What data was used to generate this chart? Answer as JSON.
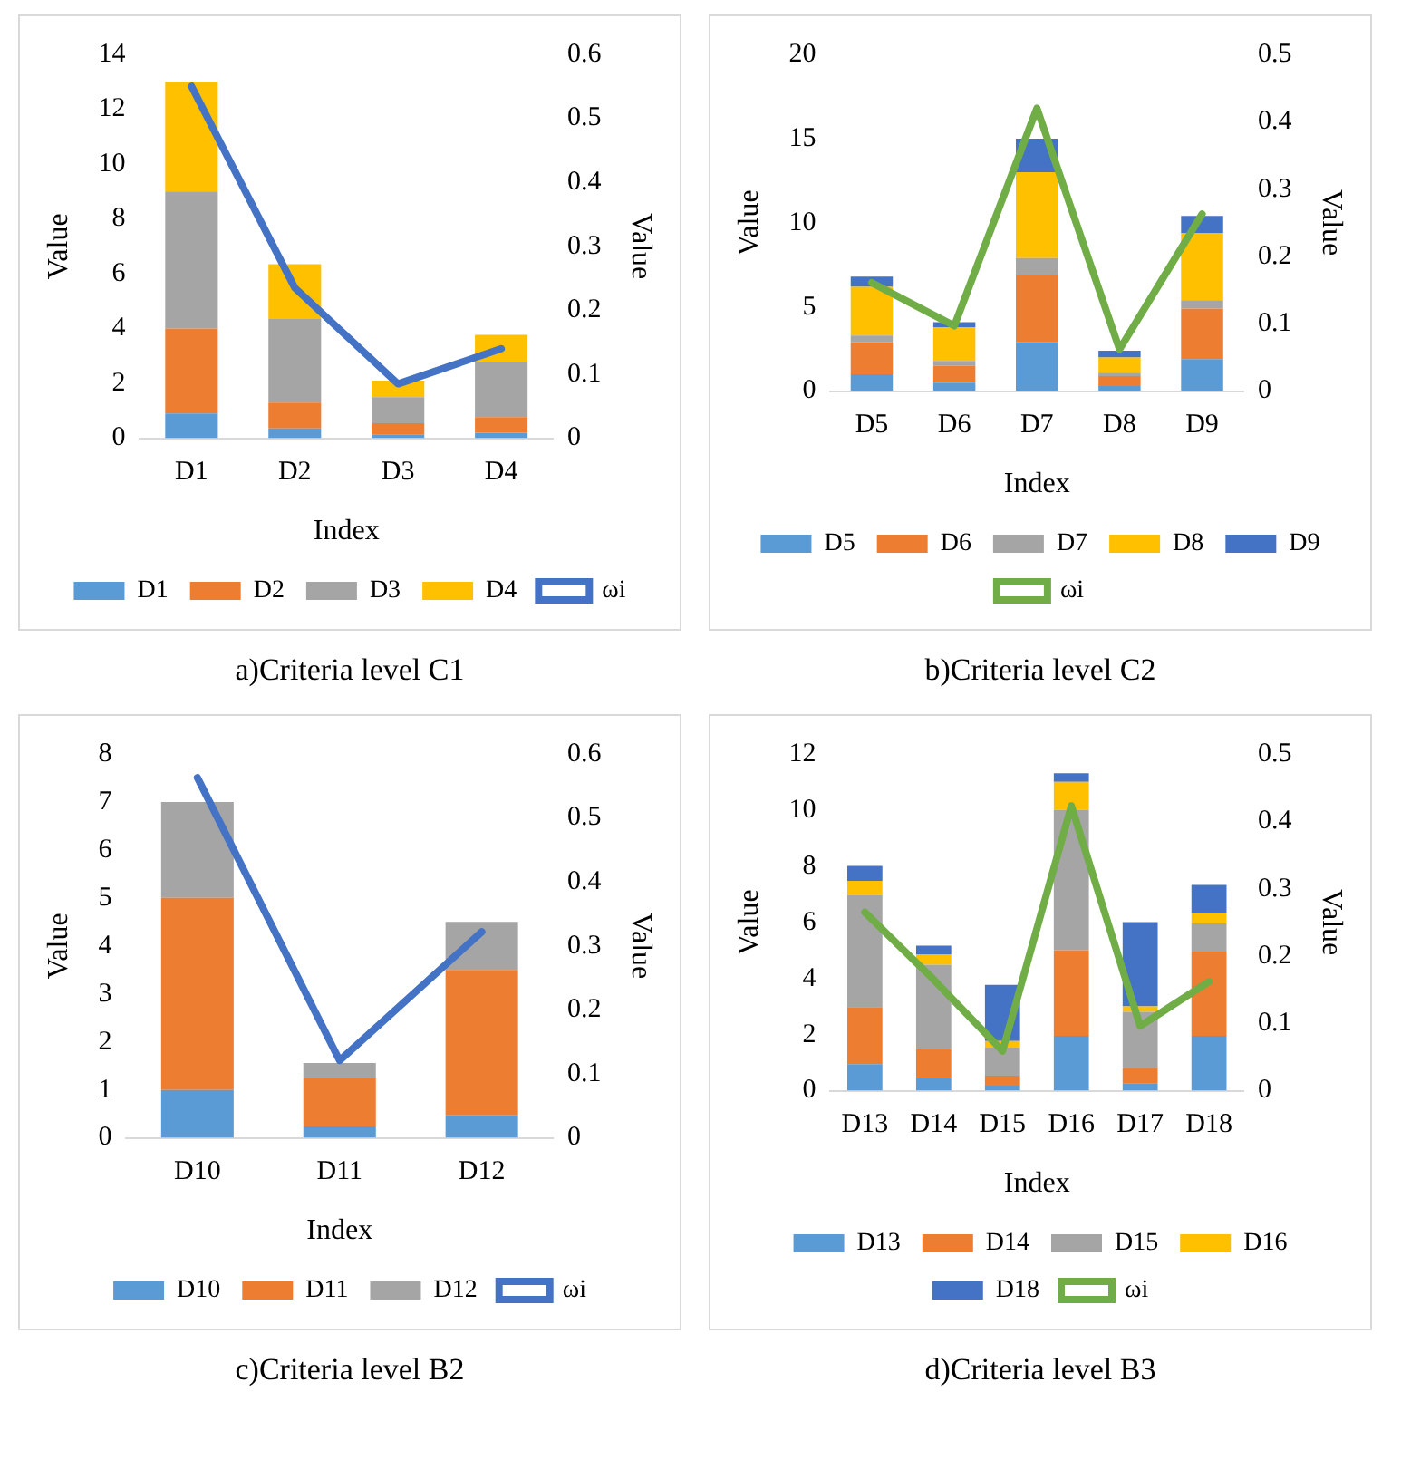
{
  "chart_data": [
    {
      "type": "bar",
      "title": "a)Criteria level C1",
      "xlabel": "Index",
      "ylabel": "Value",
      "y2label": "Value",
      "categories": [
        "D1",
        "D2",
        "D3",
        "D4"
      ],
      "stacked": true,
      "grid": false,
      "legend": "bottom",
      "marker": "none",
      "ylim": [
        0,
        14
      ],
      "yticks": [
        0,
        2,
        4,
        6,
        8,
        10,
        12,
        14
      ],
      "y2lim": [
        0,
        0.6
      ],
      "y2ticks": [
        0,
        0.1,
        0.2,
        0.3,
        0.4,
        0.5,
        0.6
      ],
      "series": [
        {
          "name": "D1",
          "color": "#5b9bd5",
          "values": [
            0.9,
            0.36,
            0.14,
            0.2
          ]
        },
        {
          "name": "D2",
          "color": "#ed7d31",
          "values": [
            3.1,
            0.94,
            0.41,
            0.57
          ]
        },
        {
          "name": "D3",
          "color": "#a5a5a5",
          "values": [
            5.0,
            3.05,
            0.95,
            2.0
          ]
        },
        {
          "name": "D4",
          "color": "#ffc000",
          "values": [
            4.0,
            2.0,
            0.6,
            1.0
          ]
        },
        {
          "name": "ωi",
          "color": "#4472c4",
          "type": "line",
          "axis": "y2",
          "values": [
            0.55,
            0.235,
            0.085,
            0.14
          ]
        }
      ]
    },
    {
      "type": "bar",
      "title": "b)Criteria level C2",
      "xlabel": "Index",
      "ylabel": "Value",
      "y2label": "Value",
      "categories": [
        "D5",
        "D6",
        "D7",
        "D8",
        "D9"
      ],
      "stacked": true,
      "grid": false,
      "legend": "bottom",
      "marker": "none",
      "ylim": [
        0,
        20
      ],
      "yticks": [
        0,
        5,
        10,
        15,
        20
      ],
      "y2lim": [
        0,
        0.5
      ],
      "y2ticks": [
        0,
        0.1,
        0.2,
        0.3,
        0.4,
        0.5
      ],
      "series": [
        {
          "name": "D5",
          "color": "#5b9bd5",
          "values": [
            1.0,
            0.5,
            2.9,
            0.3,
            1.9
          ]
        },
        {
          "name": "D6",
          "color": "#ed7d31",
          "values": [
            1.9,
            1.0,
            4.0,
            0.6,
            3.0
          ]
        },
        {
          "name": "D7",
          "color": "#a5a5a5",
          "values": [
            0.4,
            0.3,
            1.0,
            0.2,
            0.5
          ]
        },
        {
          "name": "D8",
          "color": "#ffc000",
          "values": [
            2.9,
            2.0,
            5.1,
            0.9,
            4.0
          ]
        },
        {
          "name": "D9",
          "color": "#4472c4",
          "values": [
            0.6,
            0.3,
            2.0,
            0.4,
            1.0
          ]
        },
        {
          "name": "ωi",
          "color": "#70ad47",
          "type": "line",
          "axis": "y2",
          "values": [
            0.161,
            0.097,
            0.42,
            0.062,
            0.263
          ]
        }
      ]
    },
    {
      "type": "bar",
      "title": "c)Criteria level B2",
      "xlabel": "Index",
      "ylabel": "Value",
      "y2label": "Value",
      "categories": [
        "D10",
        "D11",
        "D12"
      ],
      "stacked": true,
      "grid": false,
      "legend": "bottom",
      "marker": "none",
      "ylim": [
        0,
        8
      ],
      "yticks": [
        0,
        1,
        2,
        3,
        4,
        5,
        6,
        7,
        8
      ],
      "y2lim": [
        0,
        0.6
      ],
      "y2ticks": [
        0,
        0.1,
        0.2,
        0.3,
        0.4,
        0.5,
        0.6
      ],
      "series": [
        {
          "name": "D10",
          "color": "#5b9bd5",
          "values": [
            1.0,
            0.24,
            0.47
          ]
        },
        {
          "name": "D11",
          "color": "#ed7d31",
          "values": [
            4.0,
            1.0,
            3.03
          ]
        },
        {
          "name": "D12",
          "color": "#a5a5a5",
          "values": [
            2.0,
            0.32,
            1.0
          ]
        },
        {
          "name": "ωi",
          "color": "#4472c4",
          "type": "line",
          "axis": "y2",
          "values": [
            0.563,
            0.121,
            0.322
          ]
        }
      ]
    },
    {
      "type": "bar",
      "title": "d)Criteria level B3",
      "xlabel": "Index",
      "ylabel": "Value",
      "y2label": "Value",
      "categories": [
        "D13",
        "D14",
        "D15",
        "D16",
        "D17",
        "D18"
      ],
      "stacked": true,
      "grid": false,
      "legend": "bottom",
      "marker": "none",
      "ylim": [
        0,
        12
      ],
      "yticks": [
        0,
        2,
        4,
        6,
        8,
        10,
        12
      ],
      "y2lim": [
        0,
        0.5
      ],
      "y2ticks": [
        0,
        0.1,
        0.2,
        0.3,
        0.4,
        0.5
      ],
      "series": [
        {
          "name": "D13",
          "color": "#5b9bd5",
          "values": [
            0.95,
            0.45,
            0.18,
            1.96,
            0.27,
            1.96
          ]
        },
        {
          "name": "D14",
          "color": "#ed7d31",
          "values": [
            2.03,
            1.04,
            0.36,
            3.05,
            0.54,
            3.0
          ]
        },
        {
          "name": "D15",
          "color": "#a5a5a5",
          "values": [
            4.0,
            3.0,
            1.0,
            5.0,
            2.0,
            1.0
          ]
        },
        {
          "name": "D16",
          "color": "#ffc000",
          "values": [
            0.5,
            0.36,
            0.23,
            1.0,
            0.2,
            0.37
          ]
        },
        {
          "name": "D18",
          "color": "#4472c4",
          "values": [
            0.53,
            0.32,
            2.0,
            0.3,
            3.0,
            1.0
          ]
        },
        {
          "name": "ωi",
          "color": "#70ad47",
          "type": "line",
          "axis": "y2",
          "values": [
            0.265,
            0.165,
            0.059,
            0.423,
            0.096,
            0.162
          ]
        }
      ]
    }
  ]
}
